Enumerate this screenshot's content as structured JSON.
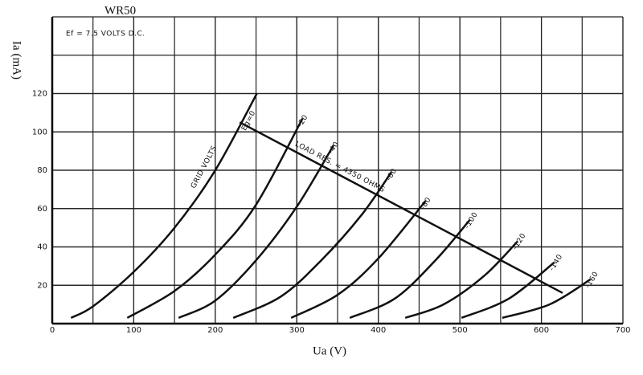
{
  "chart_data": {
    "type": "line",
    "title": "WR50",
    "subtitle": "Ef = 7.5 VOLTS D.C.",
    "x_label": "Ua (V)",
    "y_label": "Ia (mA)",
    "xlim": [
      0,
      700
    ],
    "ylim": [
      0,
      160
    ],
    "xticks": [
      0,
      100,
      200,
      300,
      400,
      500,
      600,
      700
    ],
    "yticks": [
      20,
      40,
      60,
      80,
      100,
      120
    ],
    "grid": true,
    "color": "#111111",
    "series": [
      {
        "name": "Eg=0",
        "x": [
          23,
          50,
          100,
          150,
          200,
          251
        ],
        "y": [
          3,
          9,
          27,
          50,
          80,
          120
        ]
      },
      {
        "name": "-20",
        "x": [
          92,
          150,
          200,
          250,
          307
        ],
        "y": [
          3,
          17,
          36,
          62,
          107
        ]
      },
      {
        "name": "-40",
        "x": [
          155,
          200,
          250,
          300,
          345
        ],
        "y": [
          3,
          12,
          33,
          61,
          93
        ]
      },
      {
        "name": "-60",
        "x": [
          222,
          280,
          330,
          380,
          416
        ],
        "y": [
          3,
          14,
          33,
          57,
          79
        ]
      },
      {
        "name": "-80",
        "x": [
          293,
          350,
          400,
          458
        ],
        "y": [
          3,
          15,
          34,
          64
        ]
      },
      {
        "name": "-100",
        "x": [
          365,
          420,
          470,
          512
        ],
        "y": [
          3,
          13,
          33,
          54
        ]
      },
      {
        "name": "-120",
        "x": [
          433,
          480,
          530,
          571
        ],
        "y": [
          3,
          10,
          25,
          43
        ]
      },
      {
        "name": "-140",
        "x": [
          502,
          560,
          616
        ],
        "y": [
          3,
          13,
          32
        ]
      },
      {
        "name": "-160",
        "x": [
          552,
          610,
          660
        ],
        "y": [
          3,
          10,
          23
        ]
      }
    ],
    "grid_label": "GRID VOLTS",
    "load_line": {
      "label": "LOAD RES. = 4350 OHMS",
      "x": [
        230,
        626
      ],
      "y": [
        105,
        16
      ]
    }
  }
}
